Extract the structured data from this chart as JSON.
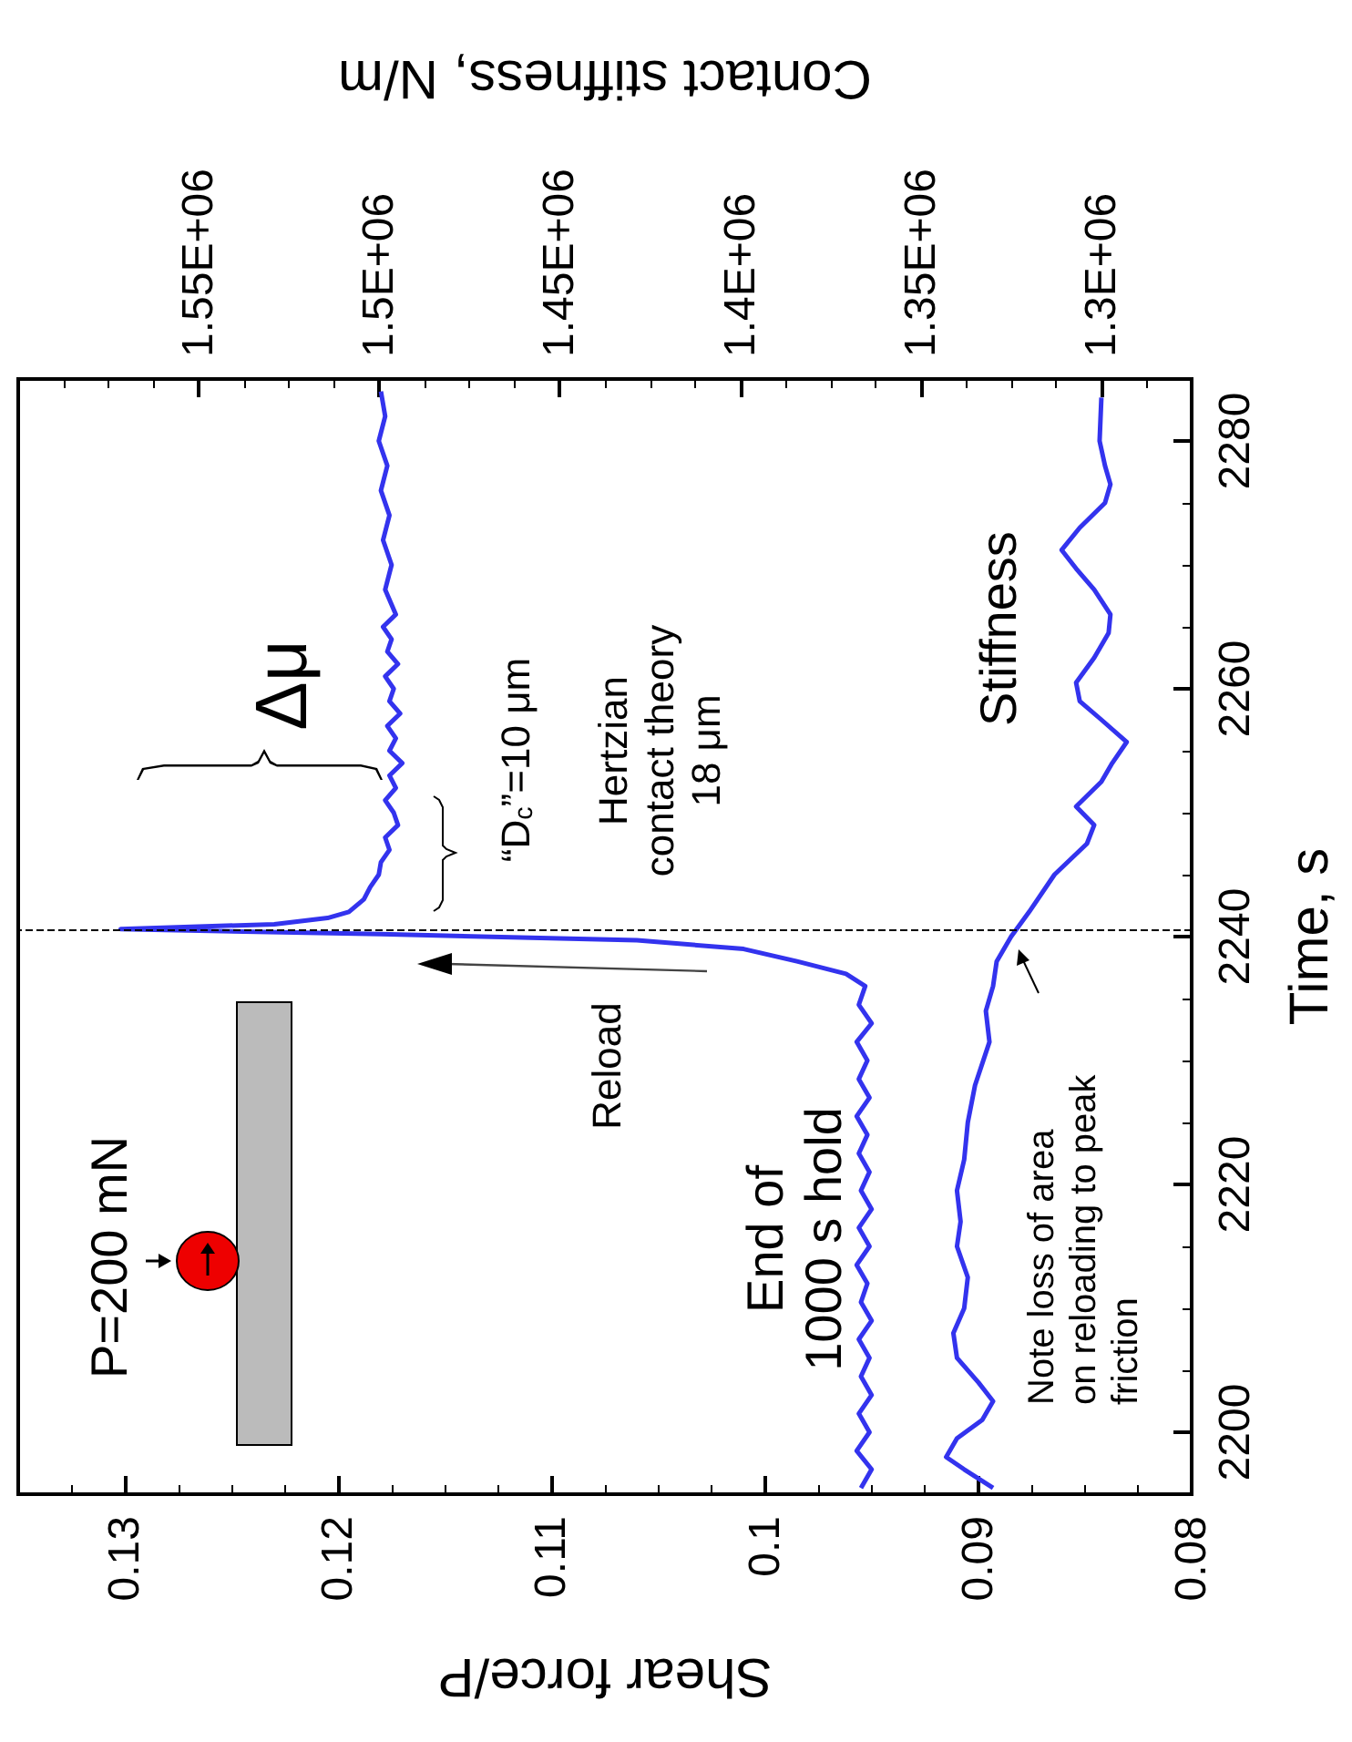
{
  "chart_data": {
    "type": "line",
    "xlabel": "Shear force/P",
    "ylabel": "Time, s",
    "x2label": "Contact stiffness, N/m",
    "ylim": [
      2195,
      2285
    ],
    "yticks": [
      2200,
      2220,
      2240,
      2260,
      2280
    ],
    "xlim": [
      0.135,
      0.08
    ],
    "xticks": [
      {
        "value": 0.08,
        "label": "0.08"
      },
      {
        "value": 0.09,
        "label": "0.09"
      },
      {
        "value": 0.1,
        "label": "0.1"
      },
      {
        "value": 0.11,
        "label": "0.11"
      },
      {
        "value": 0.12,
        "label": "0.12"
      },
      {
        "value": 0.13,
        "label": "0.13"
      }
    ],
    "x2lim": [
      1600000,
      1275000
    ],
    "x2ticks": [
      {
        "value": 1300000,
        "label": "1.3E+06"
      },
      {
        "value": 1350000,
        "label": "1.35E+06"
      },
      {
        "value": 1400000,
        "label": "1.4E+06"
      },
      {
        "value": 1450000,
        "label": "1.45E+06"
      },
      {
        "value": 1500000,
        "label": "1.5E+06"
      },
      {
        "value": 1550000,
        "label": "1.55E+06"
      }
    ],
    "grid": false,
    "legend": false,
    "marker": "none",
    "line_style": "solid",
    "series": [
      {
        "color": "#3333ee",
        "values": [
          2195.5,
          2197,
          2198.5,
          2200,
          2201.5,
          2203,
          2204.5,
          2206,
          2207.5,
          2209,
          2210.5,
          2212,
          2213.5,
          2215,
          2216.5,
          2218,
          2219.5,
          2221,
          2222.5,
          2224,
          2225.5,
          2227,
          2228.5,
          2230,
          2231.5,
          2233,
          2234.5,
          2236,
          2237,
          2238,
          2239,
          2239.7,
          2240.2,
          2240.6,
          2241,
          2241.5,
          2242,
          2243,
          2244,
          2245,
          2246,
          2247,
          2248,
          2249,
          2250,
          2251,
          2252,
          2253,
          2254,
          2255,
          2256,
          2257,
          2258,
          2259,
          2260,
          2261,
          2262,
          2263,
          2264,
          2265,
          2266,
          2268,
          2270,
          2272,
          2274,
          2276,
          2278,
          2280,
          2282,
          2284
        ],
        "x": [
          0.0955,
          0.095,
          0.0957,
          0.0951,
          0.0956,
          0.095,
          0.0955,
          0.0951,
          0.0956,
          0.095,
          0.0955,
          0.0952,
          0.0957,
          0.0951,
          0.0956,
          0.095,
          0.0955,
          0.0951,
          0.0956,
          0.0952,
          0.0957,
          0.0951,
          0.0956,
          0.0952,
          0.0957,
          0.095,
          0.0956,
          0.0953,
          0.0962,
          0.0985,
          0.101,
          0.106,
          0.118,
          0.1302,
          0.123,
          0.1205,
          0.1195,
          0.1188,
          0.1185,
          0.1181,
          0.118,
          0.1176,
          0.1178,
          0.1172,
          0.1174,
          0.1178,
          0.1173,
          0.1176,
          0.117,
          0.1176,
          0.1173,
          0.1177,
          0.1171,
          0.1176,
          0.1174,
          0.1178,
          0.1172,
          0.1177,
          0.1175,
          0.1179,
          0.1173,
          0.1178,
          0.1175,
          0.1179,
          0.1176,
          0.118,
          0.1177,
          0.1181,
          0.1178,
          0.118
        ]
      },
      {
        "name": "Stiffness",
        "color": "#3333ee",
        "axis": "x2",
        "values": [
          2195.5,
          2197,
          2198,
          2199.5,
          2201,
          2202.5,
          2204,
          2206,
          2208,
          2210,
          2212.5,
          2215,
          2217,
          2219.5,
          2222,
          2225,
          2228,
          2231.5,
          2234,
          2236,
          2238,
          2240,
          2242,
          2245,
          2247.5,
          2249,
          2250.5,
          2252.5,
          2254,
          2255.7,
          2257.5,
          2259,
          2260.5,
          2262.5,
          2264.5,
          2266,
          2268,
          2269.7,
          2271.2,
          2273,
          2275,
          2276.5,
          2278,
          2280,
          2283.5
        ],
        "x": [
          1330000,
          1338000,
          1343000,
          1340000,
          1333000,
          1330000,
          1334000,
          1340000,
          1341000,
          1338000,
          1337000,
          1340000,
          1339000,
          1340000,
          1338000,
          1337000,
          1335000,
          1331000,
          1332000,
          1330000,
          1329000,
          1325000,
          1320000,
          1313000,
          1304000,
          1302000,
          1307000,
          1300000,
          1297000,
          1293000,
          1300000,
          1306000,
          1307000,
          1302000,
          1298000,
          1297500,
          1302000,
          1307000,
          1311000,
          1306000,
          1299000,
          1297500,
          1299000,
          1300500,
          1300000
        ]
      }
    ],
    "ref_lines": [
      {
        "axis": "y",
        "value": 2240.6,
        "color": "#000000",
        "line_style": "dashed"
      }
    ],
    "annotations": [
      "P=200 mN",
      "End of\n1000 s hold",
      "Reload",
      "Δμ",
      "“D$_{c}$”=10 μm",
      "Hertzian\ncontact theory\n18 μm",
      "Note loss of area\non reloading to peak\nfriction"
    ]
  }
}
